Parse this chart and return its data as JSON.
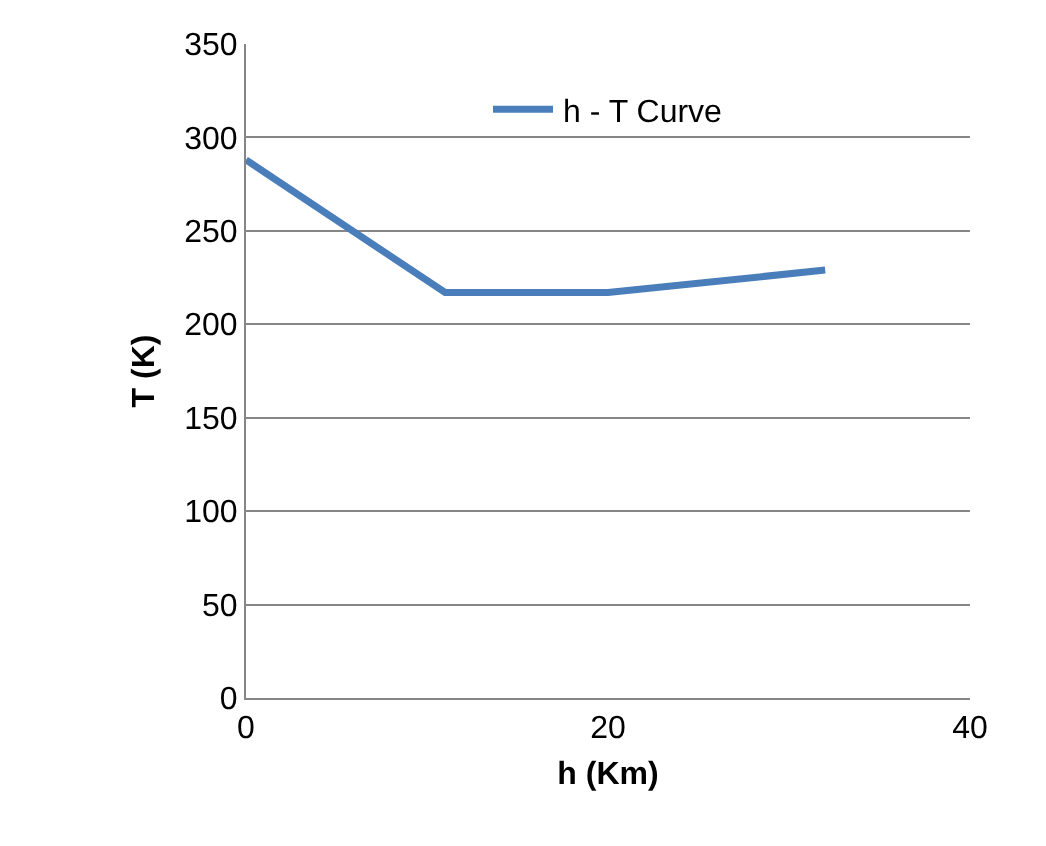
{
  "chart_data": {
    "type": "line",
    "xlabel": "h (Km)",
    "ylabel": "T (K)",
    "x": [
      0,
      11,
      20,
      32
    ],
    "series": [
      {
        "name": "h - T Curve",
        "color": "#4a7ebb",
        "values": [
          288,
          217,
          217,
          229
        ]
      }
    ],
    "xlim": [
      0,
      40
    ],
    "xticks": [
      0,
      20,
      40
    ],
    "ylim": [
      0,
      350
    ],
    "yticks": [
      0,
      50,
      100,
      150,
      200,
      250,
      300,
      350
    ],
    "grid": "y",
    "legend": "top",
    "marker": "none",
    "line_style": "solid"
  }
}
